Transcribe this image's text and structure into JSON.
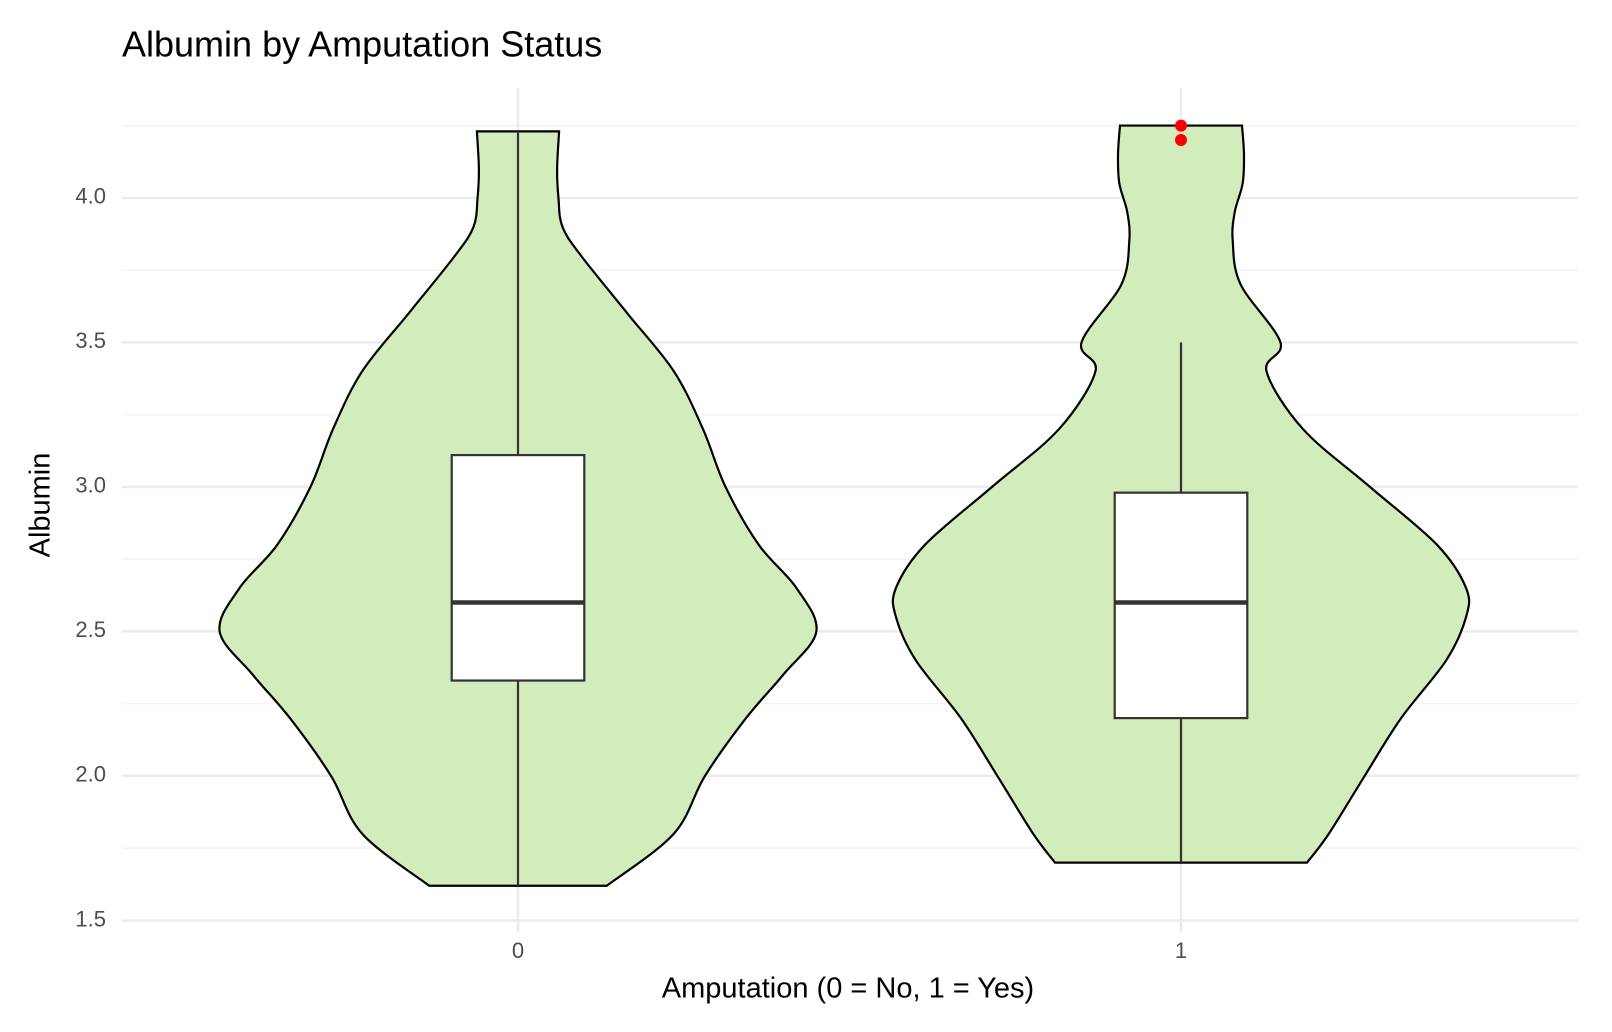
{
  "chart_data": {
    "type": "violin",
    "title": "Albumin by Amputation Status",
    "x_label": "Amputation (0 = No, 1 = Yes)",
    "y_label": "Albumin",
    "categories": [
      "0",
      "1"
    ],
    "ylim": [
      1.46,
      4.38
    ],
    "yticks": [
      {
        "value": 1.5,
        "label": "1.5"
      },
      {
        "value": 2.0,
        "label": "2.0"
      },
      {
        "value": 2.5,
        "label": "2.5"
      },
      {
        "value": 3.0,
        "label": "3.0"
      },
      {
        "value": 3.5,
        "label": "3.5"
      },
      {
        "value": 4.0,
        "label": "4.0"
      }
    ],
    "y_minor_ticks": [
      1.75,
      2.25,
      2.75,
      3.25,
      3.75,
      4.25
    ],
    "grid": true,
    "fill_color": "#d3ecbc",
    "outlier_color": "#ff0000",
    "violins": [
      {
        "y": [
          1.62,
          1.8,
          2.0,
          2.2,
          2.35,
          2.5,
          2.65,
          2.8,
          3.0,
          3.2,
          3.4,
          3.6,
          3.8,
          3.9,
          4.0,
          4.1,
          4.23
        ],
        "width": [
          0.134,
          0.235,
          0.282,
          0.344,
          0.4,
          0.45,
          0.42,
          0.363,
          0.313,
          0.279,
          0.235,
          0.165,
          0.095,
          0.067,
          0.061,
          0.059,
          0.062
        ]
      },
      {
        "y": [
          1.7,
          1.8,
          2.0,
          2.2,
          2.4,
          2.55,
          2.65,
          2.8,
          3.0,
          3.2,
          3.4,
          3.5,
          3.7,
          3.85,
          3.95,
          4.05,
          4.15,
          4.25
        ],
        "width": [
          0.19,
          0.223,
          0.277,
          0.332,
          0.4,
          0.43,
          0.43,
          0.386,
          0.285,
          0.184,
          0.129,
          0.15,
          0.09,
          0.078,
          0.081,
          0.093,
          0.095,
          0.092
        ]
      }
    ],
    "boxes": [
      {
        "min": 1.62,
        "q1": 2.33,
        "median": 2.6,
        "q3": 3.11,
        "max": 4.23,
        "outliers": []
      },
      {
        "min": 1.7,
        "q1": 2.2,
        "median": 2.6,
        "q3": 2.98,
        "max": 3.5,
        "outliers": [
          4.2,
          4.25
        ]
      }
    ]
  }
}
